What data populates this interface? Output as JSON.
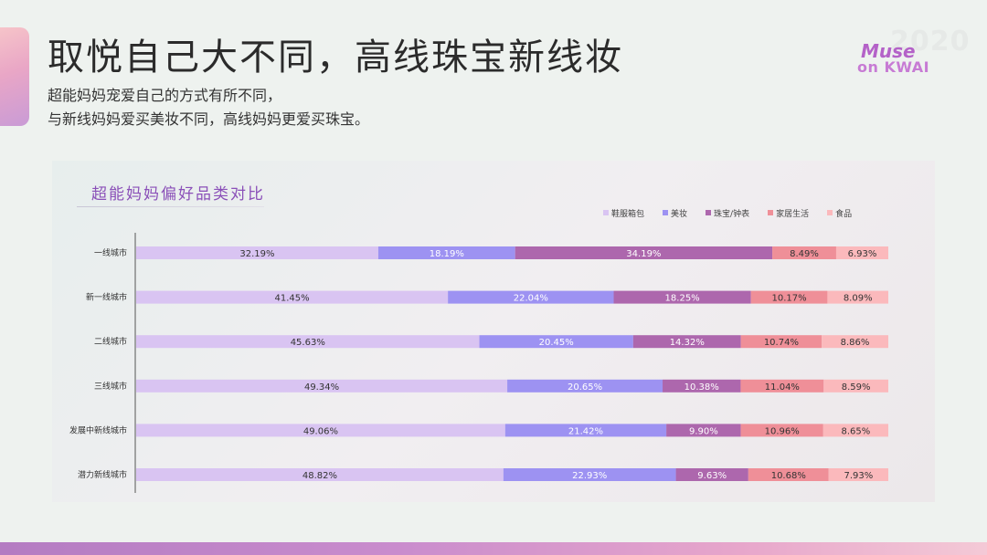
{
  "header": {
    "title": "取悦自己大不同，高线珠宝新线妆",
    "subtitle_lines": [
      "超能妈妈宠爱自己的方式有所不同，",
      "与新线妈妈爱买美妆不同，高线妈妈更爱买珠宝。"
    ]
  },
  "logo": {
    "year": "2020",
    "line1": "Muse",
    "line2": "on KWAI"
  },
  "chart_data": {
    "type": "bar",
    "orientation": "horizontal",
    "stacked": true,
    "title": "超能妈妈偏好品类对比",
    "legend_position": "top-right",
    "categories": [
      "一线城市",
      "新一线城市",
      "二线城市",
      "三线城市",
      "发展中新线城市",
      "潜力新线城市"
    ],
    "series": [
      {
        "name": "鞋服箱包",
        "color": "#d9c4f2",
        "label_color": "#333333",
        "values": [
          32.19,
          41.45,
          45.63,
          49.34,
          49.06,
          48.82
        ],
        "labels": [
          "32.19%",
          "41.45%",
          "45.63%",
          "49.34%",
          "49.06%",
          "48.82%"
        ]
      },
      {
        "name": "美妆",
        "color": "#9d92f2",
        "label_color": "#ffffff",
        "values": [
          18.19,
          22.04,
          20.45,
          20.65,
          21.42,
          22.93
        ],
        "labels": [
          "18.19%",
          "22.04%",
          "20.45%",
          "20.65%",
          "21.42%",
          "22.93%"
        ]
      },
      {
        "name": "珠宝/钟表",
        "color": "#ad67ad",
        "label_color": "#ffffff",
        "values": [
          34.19,
          18.25,
          14.32,
          10.38,
          9.9,
          9.63
        ],
        "labels": [
          "34.19%",
          "18.25%",
          "14.32%",
          "10.38%",
          "9.90%",
          "9.63%"
        ]
      },
      {
        "name": "家居生活",
        "color": "#ef8f98",
        "label_color": "#333333",
        "values": [
          8.49,
          10.17,
          10.74,
          11.04,
          10.96,
          10.68
        ],
        "labels": [
          "8.49%",
          "10.17%",
          "10.74%",
          "11.04%",
          "10.96%",
          "10.68%"
        ]
      },
      {
        "name": "食品",
        "color": "#fbb9bc",
        "label_color": "#333333",
        "values": [
          6.93,
          8.09,
          8.86,
          8.59,
          8.65,
          7.93
        ],
        "labels": [
          "6.93%",
          "8.09%",
          "8.86%",
          "8.59%",
          "8.65%",
          "7.93%"
        ]
      }
    ]
  }
}
